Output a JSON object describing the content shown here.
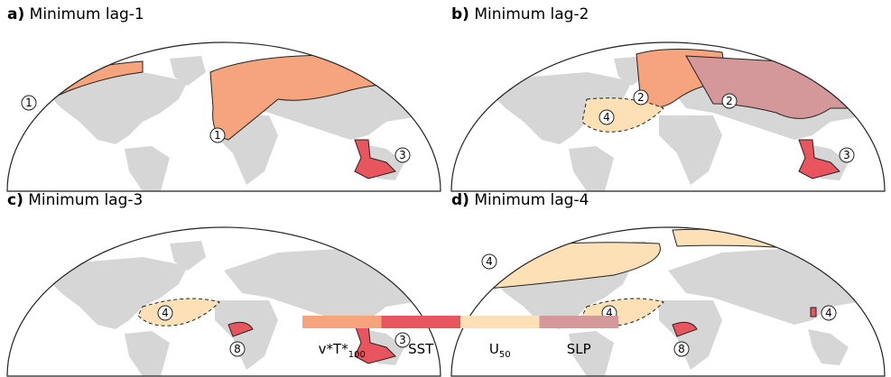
{
  "panels": [
    {
      "letter": "a)",
      "title": "Minimum lag-1",
      "regions": [
        {
          "label": "1",
          "color": "#f6a47e"
        },
        {
          "label": "1",
          "color": "#f6a47e"
        },
        {
          "label": "3",
          "color": "#e8555f"
        }
      ]
    },
    {
      "letter": "b)",
      "title": "Minimum lag-2",
      "regions": [
        {
          "label": "2",
          "color": "#f6a47e"
        },
        {
          "label": "2",
          "color": "#d4989a"
        },
        {
          "label": "4",
          "color": "#fde0b5"
        },
        {
          "label": "3",
          "color": "#e8555f"
        }
      ]
    },
    {
      "letter": "c)",
      "title": "Minimum lag-3",
      "regions": [
        {
          "label": "4",
          "color": "#fde0b5"
        },
        {
          "label": "8",
          "color": "#e8555f"
        },
        {
          "label": "3",
          "color": "#e8555f"
        }
      ]
    },
    {
      "letter": "d)",
      "title": "Minimum lag-4",
      "regions": [
        {
          "label": "4",
          "color": "#fde0b5"
        },
        {
          "color": "#fde0b5"
        },
        {
          "label": "4",
          "color": "#fde0b5"
        },
        {
          "label": "8",
          "color": "#e8555f"
        },
        {
          "label": "4",
          "color": "#e8555f"
        }
      ]
    }
  ],
  "legend": [
    {
      "label": "v*T*",
      "subscript": "100",
      "color": "#f6a47e"
    },
    {
      "label": "SST",
      "color": "#e8555f"
    },
    {
      "label": "U",
      "subscript": "50",
      "color": "#fde0b5"
    },
    {
      "label": "SLP",
      "color": "#d4989a"
    }
  ]
}
